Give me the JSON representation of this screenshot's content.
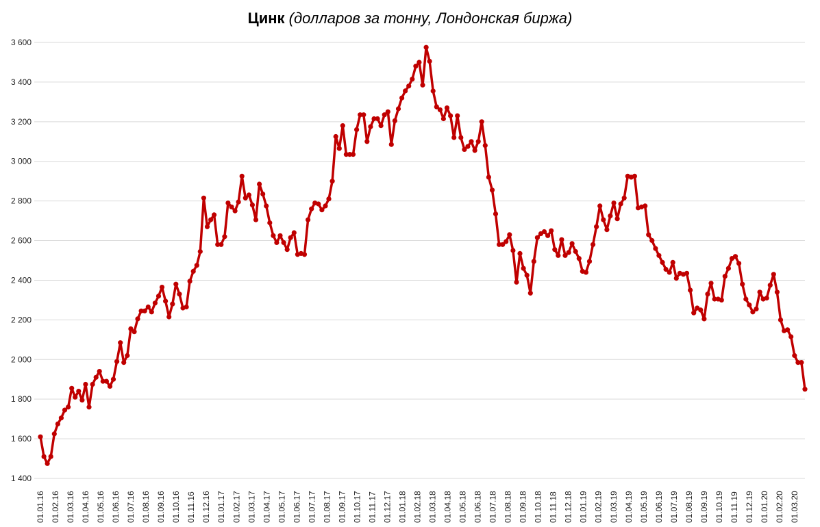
{
  "chart_data": {
    "type": "line",
    "title": "Цинк",
    "subtitle": "(долларов за тонну, Лондонская биржа)",
    "xlabel": "",
    "ylabel": "",
    "ylim": [
      1400,
      3600
    ],
    "yticks": [
      1400,
      1600,
      1800,
      2000,
      2200,
      2400,
      2600,
      2800,
      3000,
      3200,
      3400,
      3600
    ],
    "ytick_labels": [
      "1 400",
      "1 600",
      "1 800",
      "2 000",
      "2 200",
      "2 400",
      "2 600",
      "2 800",
      "3 000",
      "3 200",
      "3 400",
      "3 600"
    ],
    "xtick_labels": [
      "01.01.16",
      "01.02.16",
      "01.03.16",
      "01.04.16",
      "01.05.16",
      "01.06.16",
      "01.07.16",
      "01.08.16",
      "01.09.16",
      "01.10.16",
      "01.11.16",
      "01.12.16",
      "01.01.17",
      "01.02.17",
      "01.03.17",
      "01.04.17",
      "01.05.17",
      "01.06.17",
      "01.07.17",
      "01.08.17",
      "01.09.17",
      "01.10.17",
      "01.11.17",
      "01.12.17",
      "01.01.18",
      "01.02.18",
      "01.03.18",
      "01.04.18",
      "01.05.18",
      "01.06.18",
      "01.07.18",
      "01.08.18",
      "01.09.18",
      "01.10.18",
      "01.11.18",
      "01.12.18",
      "01.01.19",
      "01.02.19",
      "01.03.19",
      "01.04.19",
      "01.05.19",
      "01.06.19",
      "01.07.19",
      "01.08.19",
      "01.09.19",
      "01.10.19",
      "01.11.19",
      "01.12.19",
      "01.01.20",
      "01.02.20",
      "01.03.20"
    ],
    "grid": true,
    "legend": "none",
    "line_color": "#C00000",
    "series": [
      {
        "values": [
          1610,
          1510,
          1475,
          1510,
          1625,
          1675,
          1705,
          1745,
          1760,
          1855,
          1810,
          1840,
          1795,
          1875,
          1760,
          1875,
          1910,
          1940,
          1890,
          1890,
          1865,
          1900,
          1990,
          2085,
          1985,
          2020,
          2155,
          2140,
          2205,
          2245,
          2245,
          2265,
          2240,
          2285,
          2320,
          2365,
          2295,
          2215,
          2280,
          2380,
          2330,
          2260,
          2265,
          2395,
          2445,
          2475,
          2545,
          2815,
          2670,
          2705,
          2730,
          2580,
          2580,
          2620,
          2790,
          2770,
          2750,
          2795,
          2925,
          2815,
          2830,
          2780,
          2705,
          2885,
          2835,
          2775,
          2690,
          2625,
          2590,
          2625,
          2590,
          2555,
          2615,
          2640,
          2530,
          2535,
          2530,
          2705,
          2760,
          2790,
          2785,
          2755,
          2775,
          2810,
          2900,
          3125,
          3065,
          3180,
          3035,
          3035,
          3035,
          3160,
          3235,
          3235,
          3100,
          3175,
          3215,
          3215,
          3180,
          3235,
          3250,
          3085,
          3205,
          3265,
          3320,
          3355,
          3380,
          3415,
          3480,
          3500,
          3385,
          3575,
          3505,
          3355,
          3275,
          3260,
          3215,
          3270,
          3230,
          3120,
          3230,
          3120,
          3060,
          3075,
          3100,
          3055,
          3100,
          3200,
          3080,
          2920,
          2855,
          2735,
          2580,
          2580,
          2595,
          2630,
          2550,
          2390,
          2535,
          2460,
          2425,
          2335,
          2495,
          2615,
          2635,
          2645,
          2625,
          2650,
          2555,
          2525,
          2605,
          2525,
          2540,
          2585,
          2545,
          2510,
          2445,
          2440,
          2495,
          2580,
          2670,
          2775,
          2705,
          2655,
          2725,
          2790,
          2710,
          2785,
          2815,
          2925,
          2920,
          2925,
          2765,
          2770,
          2775,
          2630,
          2600,
          2560,
          2525,
          2490,
          2455,
          2440,
          2490,
          2410,
          2435,
          2430,
          2435,
          2350,
          2235,
          2260,
          2250,
          2205,
          2330,
          2385,
          2305,
          2305,
          2300,
          2420,
          2460,
          2510,
          2520,
          2485,
          2380,
          2305,
          2275,
          2240,
          2255,
          2340,
          2305,
          2310,
          2375,
          2430,
          2340,
          2200,
          2145,
          2150,
          2115,
          2020,
          1985,
          1985,
          1850
        ]
      }
    ]
  }
}
